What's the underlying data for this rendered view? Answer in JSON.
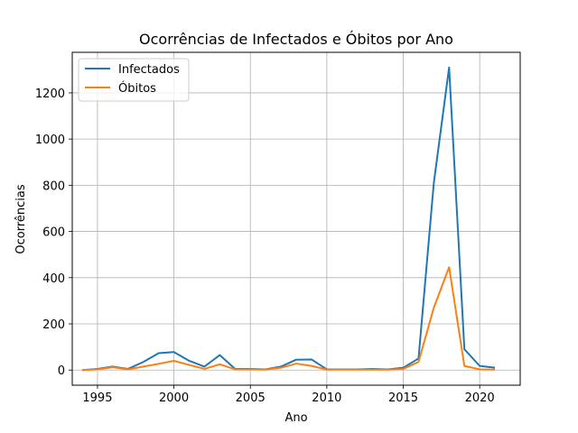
{
  "chart_data": {
    "type": "line",
    "title": "Ocorrências de Infectados e Óbitos por Ano",
    "xlabel": "Ano",
    "ylabel": "Ocorrências",
    "xlim": [
      1993.35,
      2022.65
    ],
    "ylim": [
      -65.5,
      1375.5
    ],
    "xticks": [
      1995,
      2000,
      2005,
      2010,
      2015,
      2020
    ],
    "yticks": [
      0,
      200,
      400,
      600,
      800,
      1000,
      1200
    ],
    "grid": true,
    "legend_position": "top-left",
    "x": [
      1994,
      1995,
      1996,
      1997,
      1998,
      1999,
      2000,
      2001,
      2002,
      2003,
      2004,
      2005,
      2006,
      2007,
      2008,
      2009,
      2010,
      2011,
      2012,
      2013,
      2014,
      2015,
      2016,
      2017,
      2018,
      2019,
      2020,
      2021
    ],
    "series": [
      {
        "name": "Infectados",
        "color": "#1f77b4",
        "values": [
          0,
          5,
          15,
          5,
          35,
          73,
          78,
          40,
          15,
          65,
          5,
          5,
          3,
          15,
          45,
          46,
          3,
          3,
          3,
          5,
          3,
          10,
          50,
          810,
          1310,
          90,
          18,
          10
        ]
      },
      {
        "name": "Óbitos",
        "color": "#ff7f0e",
        "values": [
          0,
          3,
          12,
          3,
          15,
          27,
          40,
          22,
          5,
          25,
          3,
          3,
          2,
          10,
          28,
          18,
          2,
          2,
          2,
          2,
          2,
          5,
          35,
          270,
          445,
          18,
          3,
          2
        ]
      }
    ]
  }
}
